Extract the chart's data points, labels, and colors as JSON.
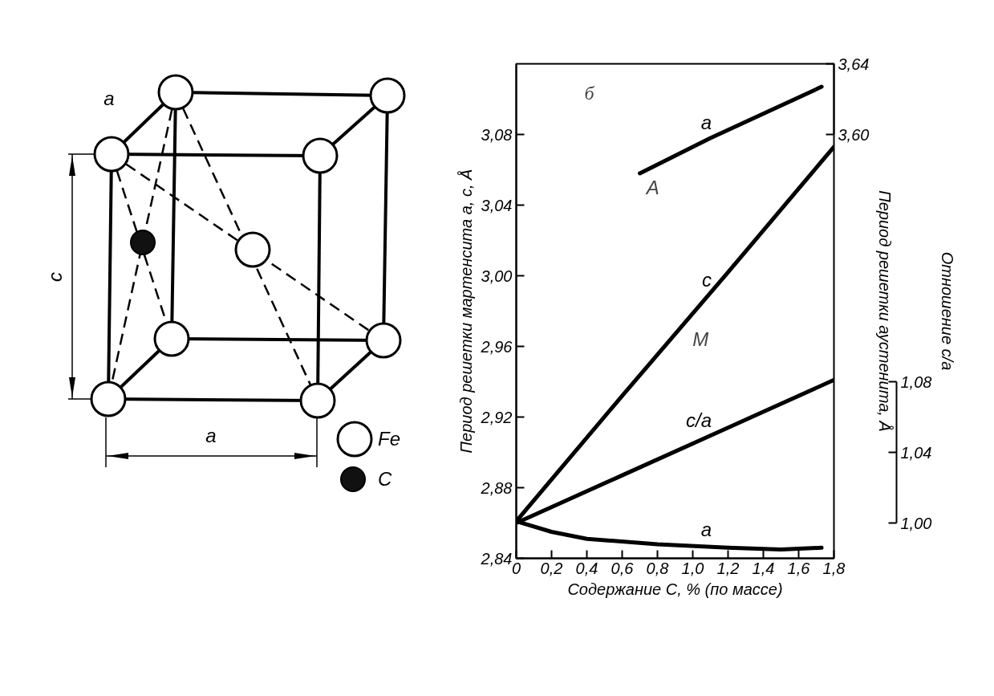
{
  "chart_data": [
    {
      "type": "other",
      "annotations": [
        "а",
        "c",
        "a",
        "Fe",
        "C"
      ]
    },
    {
      "type": "line",
      "xlabel": "Содержание C, % (по массе)",
      "ylabel": "Период решетки мартенсита a, c, Å",
      "y2label": "Период решетки аустенита, Å",
      "y3label": "Отношение c/a",
      "xlim": [
        0,
        1.8
      ],
      "xticks": [
        0,
        {
          "value": 0.2,
          "label": "0,2"
        },
        {
          "value": 0.4,
          "label": "0,4"
        },
        {
          "value": 0.6,
          "label": "0,6"
        },
        {
          "value": 0.8,
          "label": "0,8"
        },
        {
          "value": 1.0,
          "label": "1,0"
        },
        {
          "value": 1.2,
          "label": "1,2"
        },
        {
          "value": 1.4,
          "label": "1,4"
        },
        {
          "value": 1.6,
          "label": "1,6"
        },
        {
          "value": 1.8,
          "label": "1,8"
        }
      ],
      "ylim": [
        2.84,
        3.12
      ],
      "yticks": [
        {
          "value": 2.84,
          "label": "2,84"
        },
        {
          "value": 2.88,
          "label": "2,88"
        },
        {
          "value": 2.92,
          "label": "2,92"
        },
        {
          "value": 2.96,
          "label": "2,96"
        },
        {
          "value": 3.0,
          "label": "3,00"
        },
        {
          "value": 3.04,
          "label": "3,04"
        },
        {
          "value": 3.08,
          "label": "3,08"
        }
      ],
      "y2lim": [
        3.36,
        3.64
      ],
      "y2ticks": [
        {
          "value": 3.6,
          "label": "3,60"
        },
        {
          "value": 3.64,
          "label": "3,64"
        }
      ],
      "y3lim": [
        0.98,
        1.26
      ],
      "y3ticks": [
        {
          "value": 1.0,
          "label": "1,00"
        },
        {
          "value": 1.04,
          "label": "1,04"
        },
        {
          "value": 1.08,
          "label": "1,08"
        }
      ],
      "series": [
        {
          "name": "a",
          "color": "#000000",
          "axis": "y2",
          "x": [
            0.7,
            1.1,
            1.73
          ],
          "values": [
            3.578,
            3.598,
            3.627
          ]
        },
        {
          "name": "c",
          "color": "#000000",
          "x": [
            0,
            0.6,
            1.2,
            1.8
          ],
          "values": [
            2.861,
            2.932,
            3.002,
            3.073
          ]
        },
        {
          "name": "c/a",
          "color": "#000000",
          "axis": "y3",
          "x": [
            0,
            0.6,
            1.2,
            1.8
          ],
          "values": [
            1.0,
            1.027,
            1.054,
            1.081
          ]
        },
        {
          "name": "a",
          "color": "#000000",
          "x": [
            0,
            0.2,
            0.4,
            0.8,
            1.2,
            1.5,
            1.73
          ],
          "values": [
            2.861,
            2.855,
            2.851,
            2.848,
            2.846,
            2.845,
            2.846
          ]
        }
      ],
      "annotations": [
        "б",
        "A",
        "M"
      ]
    }
  ]
}
